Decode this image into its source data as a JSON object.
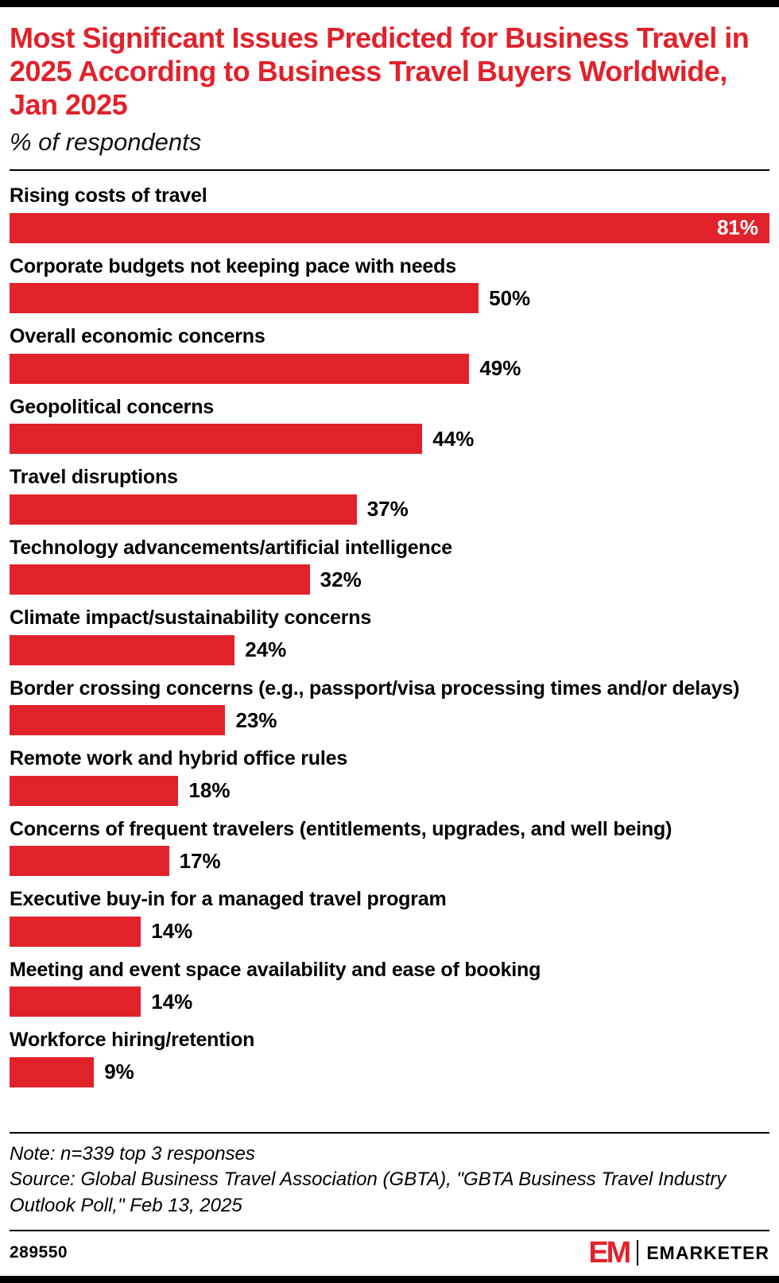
{
  "header": {
    "title": "Most Significant Issues Predicted for Business Travel in 2025 According to Business Travel Buyers Worldwide, Jan 2025",
    "subtitle": "% of respondents"
  },
  "chart_data": {
    "type": "bar",
    "orientation": "horizontal",
    "title": "Most Significant Issues Predicted for Business Travel in 2025 According to Business Travel Buyers Worldwide, Jan 2025",
    "subtitle": "% of respondents",
    "unit": "%",
    "categories": [
      "Rising costs of travel",
      "Corporate budgets not keeping pace with needs",
      "Overall economic concerns",
      "Geopolitical concerns",
      "Travel disruptions",
      "Technology advancements/artificial intelligence",
      "Climate impact/sustainability concerns",
      "Border crossing concerns (e.g., passport/visa processing times and/or delays)",
      "Remote work and hybrid office rules",
      "Concerns of frequent travelers (entitlements, upgrades, and well being)",
      "Executive buy-in for a managed travel program",
      "Meeting and event space availability and ease of booking",
      "Workforce hiring/retention"
    ],
    "values": [
      81,
      50,
      49,
      44,
      37,
      32,
      24,
      23,
      18,
      17,
      14,
      14,
      9
    ],
    "value_labels": [
      "81%",
      "50%",
      "49%",
      "44%",
      "37%",
      "32%",
      "24%",
      "23%",
      "18%",
      "17%",
      "14%",
      "14%",
      "9%"
    ],
    "xlim": [
      0,
      81
    ],
    "grid": "off",
    "legend": "none",
    "bar_color": "#E1222B"
  },
  "footnotes": {
    "note": "Note: n=339 top 3 responses",
    "source": "Source: Global Business Travel Association (GBTA), \"GBTA Business Travel Industry Outlook Poll,\" Feb 13, 2025"
  },
  "footer": {
    "chart_id": "289550",
    "logo_mark": "EM",
    "logo_text": "EMARKETER"
  },
  "colors": {
    "accent_red": "#E1222B",
    "text_black": "#000000",
    "inside_value_label": "#FFFFFF"
  }
}
